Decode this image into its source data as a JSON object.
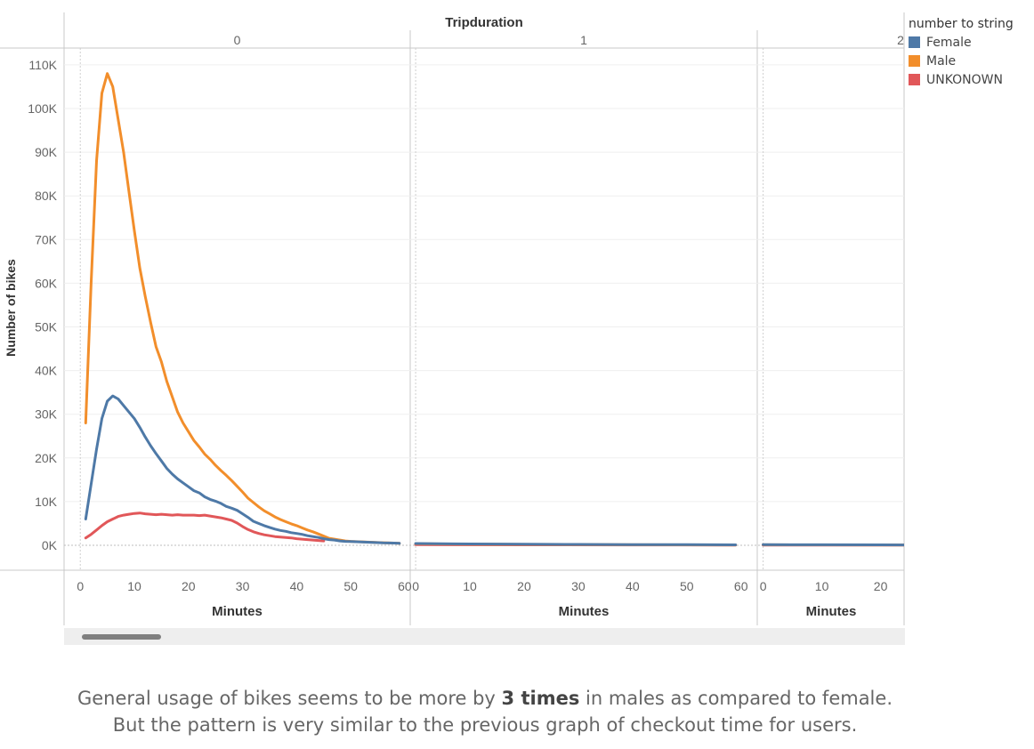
{
  "chart_data": {
    "type": "line",
    "title": "Tripduration",
    "xlabel": "Minutes",
    "ylabel": "Number of bikes",
    "y_ticks": [
      "0K",
      "10K",
      "20K",
      "30K",
      "40K",
      "50K",
      "60K",
      "70K",
      "80K",
      "90K",
      "100K",
      "110K"
    ],
    "ylim": [
      0,
      115000
    ],
    "legend_title": "number to string",
    "legend_position": "top-right",
    "grid": true,
    "panels": [
      {
        "label": "0",
        "xlim": [
          -3,
          61
        ],
        "x_ticks": [
          0,
          10,
          20,
          30,
          40,
          50,
          60
        ],
        "series": [
          {
            "name": "Female",
            "color": "#4e79a7",
            "points": [
              [
                1,
                6000
              ],
              [
                2,
                14000
              ],
              [
                3,
                22000
              ],
              [
                4,
                29000
              ],
              [
                5,
                33000
              ],
              [
                6,
                34200
              ],
              [
                7,
                33500
              ],
              [
                8,
                32000
              ],
              [
                9,
                30500
              ],
              [
                10,
                29000
              ],
              [
                11,
                27000
              ],
              [
                12,
                24800
              ],
              [
                13,
                22800
              ],
              [
                14,
                21000
              ],
              [
                15,
                19300
              ],
              [
                16,
                17600
              ],
              [
                17,
                16300
              ],
              [
                18,
                15200
              ],
              [
                19,
                14300
              ],
              [
                20,
                13400
              ],
              [
                21,
                12500
              ],
              [
                22,
                12000
              ],
              [
                23,
                11100
              ],
              [
                24,
                10500
              ],
              [
                25,
                10100
              ],
              [
                26,
                9600
              ],
              [
                27,
                8900
              ],
              [
                28,
                8500
              ],
              [
                29,
                8000
              ],
              [
                30,
                7200
              ],
              [
                31,
                6400
              ],
              [
                32,
                5500
              ],
              [
                33,
                5000
              ],
              [
                34,
                4500
              ],
              [
                35,
                4100
              ],
              [
                36,
                3700
              ],
              [
                37,
                3400
              ],
              [
                38,
                3200
              ],
              [
                39,
                2900
              ],
              [
                40,
                2700
              ],
              [
                41,
                2500
              ],
              [
                42,
                2200
              ],
              [
                43,
                2000
              ],
              [
                44,
                1800
              ],
              [
                45,
                1500
              ],
              [
                46,
                1300
              ],
              [
                47,
                1200
              ],
              [
                48,
                1000
              ],
              [
                49,
                900
              ],
              [
                50,
                850
              ],
              [
                52,
                750
              ],
              [
                54,
                650
              ],
              [
                56,
                550
              ],
              [
                58,
                500
              ],
              [
                59,
                450
              ]
            ]
          },
          {
            "name": "Male",
            "color": "#f28e2b",
            "points": [
              [
                1,
                28000
              ],
              [
                2,
                60000
              ],
              [
                3,
                88000
              ],
              [
                4,
                103500
              ],
              [
                5,
                108000
              ],
              [
                6,
                105000
              ],
              [
                7,
                97500
              ],
              [
                8,
                90000
              ],
              [
                9,
                81000
              ],
              [
                10,
                72000
              ],
              [
                11,
                63500
              ],
              [
                12,
                57000
              ],
              [
                13,
                51000
              ],
              [
                14,
                45500
              ],
              [
                15,
                42000
              ],
              [
                16,
                37500
              ],
              [
                17,
                34000
              ],
              [
                18,
                30500
              ],
              [
                19,
                28000
              ],
              [
                20,
                26000
              ],
              [
                21,
                24000
              ],
              [
                22,
                22500
              ],
              [
                23,
                20900
              ],
              [
                24,
                19700
              ],
              [
                25,
                18300
              ],
              [
                26,
                17100
              ],
              [
                27,
                16000
              ],
              [
                28,
                14800
              ],
              [
                29,
                13500
              ],
              [
                30,
                12200
              ],
              [
                31,
                10800
              ],
              [
                32,
                9800
              ],
              [
                33,
                8800
              ],
              [
                34,
                7900
              ],
              [
                35,
                7200
              ],
              [
                36,
                6500
              ],
              [
                37,
                5900
              ],
              [
                38,
                5400
              ],
              [
                39,
                4900
              ],
              [
                40,
                4500
              ],
              [
                41,
                4000
              ],
              [
                42,
                3500
              ],
              [
                43,
                3100
              ],
              [
                44,
                2600
              ],
              [
                45,
                2100
              ],
              [
                46,
                1600
              ],
              [
                47,
                1400
              ],
              [
                48,
                1200
              ],
              [
                49,
                1000
              ],
              [
                50,
                900
              ],
              [
                52,
                800
              ],
              [
                54,
                700
              ],
              [
                56,
                600
              ],
              [
                58,
                500
              ],
              [
                59,
                450
              ]
            ]
          },
          {
            "name": "UNKONOWN",
            "color": "#e15759",
            "points": [
              [
                1,
                1700
              ],
              [
                2,
                2500
              ],
              [
                3,
                3500
              ],
              [
                4,
                4500
              ],
              [
                5,
                5400
              ],
              [
                6,
                6000
              ],
              [
                7,
                6600
              ],
              [
                8,
                6900
              ],
              [
                9,
                7100
              ],
              [
                10,
                7300
              ],
              [
                11,
                7400
              ],
              [
                12,
                7200
              ],
              [
                13,
                7100
              ],
              [
                14,
                7000
              ],
              [
                15,
                7100
              ],
              [
                16,
                7000
              ],
              [
                17,
                6900
              ],
              [
                18,
                7000
              ],
              [
                19,
                6900
              ],
              [
                20,
                6900
              ],
              [
                21,
                6900
              ],
              [
                22,
                6800
              ],
              [
                23,
                6900
              ],
              [
                24,
                6700
              ],
              [
                25,
                6500
              ],
              [
                26,
                6300
              ],
              [
                27,
                6000
              ],
              [
                28,
                5700
              ],
              [
                29,
                5100
              ],
              [
                30,
                4300
              ],
              [
                31,
                3600
              ],
              [
                32,
                3100
              ],
              [
                33,
                2700
              ],
              [
                34,
                2400
              ],
              [
                35,
                2200
              ],
              [
                36,
                2000
              ],
              [
                37,
                1900
              ],
              [
                38,
                1800
              ],
              [
                39,
                1700
              ],
              [
                40,
                1500
              ],
              [
                41,
                1400
              ],
              [
                42,
                1300
              ],
              [
                43,
                1200
              ],
              [
                44,
                1100
              ],
              [
                45,
                1000
              ]
            ]
          }
        ]
      },
      {
        "label": "1",
        "xlim": [
          -1,
          63
        ],
        "x_ticks": [
          0,
          10,
          20,
          30,
          40,
          50,
          60
        ],
        "series": [
          {
            "name": "Female",
            "color": "#4e79a7",
            "points": [
              [
                0,
                400
              ],
              [
                10,
                300
              ],
              [
                20,
                250
              ],
              [
                30,
                200
              ],
              [
                40,
                150
              ],
              [
                50,
                150
              ],
              [
                59,
                100
              ]
            ]
          },
          {
            "name": "Male",
            "color": "#f28e2b",
            "points": [
              [
                0,
                350
              ],
              [
                10,
                250
              ],
              [
                20,
                200
              ],
              [
                30,
                150
              ],
              [
                40,
                120
              ],
              [
                50,
                100
              ],
              [
                59,
                80
              ]
            ]
          },
          {
            "name": "UNKONOWN",
            "color": "#e15759",
            "points": [
              [
                0,
                150
              ],
              [
                20,
                100
              ],
              [
                40,
                80
              ],
              [
                59,
                60
              ]
            ]
          }
        ]
      },
      {
        "label": "2",
        "xlim": [
          -1,
          24
        ],
        "x_ticks": [
          0,
          10,
          20
        ],
        "series": [
          {
            "name": "Female",
            "color": "#4e79a7",
            "points": [
              [
                0,
                150
              ],
              [
                10,
                120
              ],
              [
                20,
                100
              ],
              [
                24,
                90
              ]
            ]
          },
          {
            "name": "Male",
            "color": "#f28e2b",
            "points": [
              [
                0,
                130
              ],
              [
                10,
                110
              ],
              [
                20,
                90
              ],
              [
                24,
                80
              ]
            ]
          },
          {
            "name": "UNKONOWN",
            "color": "#e15759",
            "points": [
              [
                0,
                60
              ],
              [
                24,
                40
              ]
            ]
          }
        ]
      }
    ]
  },
  "caption": {
    "line1_before": "General usage of bikes seems to be more by ",
    "line1_bold": "3 times",
    "line1_after": " in males as compared to female.",
    "line2": "But the pattern is very similar to the previous graph of checkout time for users."
  }
}
